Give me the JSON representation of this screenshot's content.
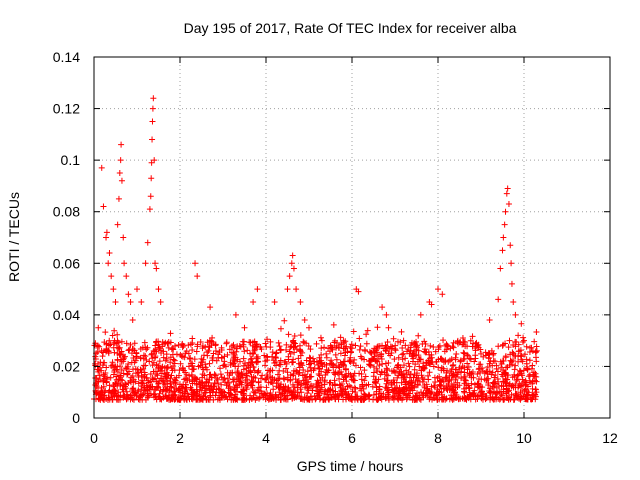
{
  "chart_data": {
    "type": "scatter",
    "title": "Day 195 of 2017, Rate Of TEC Index for receiver alba",
    "xlabel": "GPS time / hours",
    "ylabel": "ROTI / TECUs",
    "xlim": [
      0,
      12
    ],
    "ylim": [
      0,
      0.14
    ],
    "x_ticks": [
      "0",
      "2",
      "4",
      "6",
      "8",
      "10",
      "12"
    ],
    "y_ticks": [
      "0",
      "0.02",
      "0.04",
      "0.06",
      "0.08",
      "0.1",
      "0.12",
      "0.14"
    ],
    "grid": true,
    "marker": "plus",
    "marker_color": "#ff0000",
    "series": [
      {
        "x": [
          0.1,
          0.18,
          0.22,
          0.28,
          0.3,
          0.33,
          0.36,
          0.4,
          0.45,
          0.5,
          0.55,
          0.58,
          0.6,
          0.62,
          0.63,
          0.65,
          0.68,
          0.7,
          0.75,
          0.8,
          0.85,
          0.9,
          1.0,
          1.1,
          1.2,
          1.25,
          1.3,
          1.32,
          1.33,
          1.34,
          1.35,
          1.36,
          1.37,
          1.38,
          1.4,
          1.42,
          1.45,
          1.5,
          1.55,
          2.35,
          2.4,
          2.7,
          3.3,
          3.5,
          3.7,
          3.8,
          4.2,
          4.5,
          4.55,
          4.6,
          4.62,
          4.65,
          4.7,
          4.8,
          4.9,
          5.0,
          5.3,
          5.8,
          6.1,
          6.15,
          6.7,
          6.8,
          6.85,
          7.2,
          7.6,
          7.8,
          7.85,
          8.0,
          8.1,
          9.2,
          9.4,
          9.45,
          9.5,
          9.52,
          9.55,
          9.57,
          9.6,
          9.62,
          9.65,
          9.68,
          9.7,
          9.72,
          9.75,
          9.8,
          10.0
        ],
        "y": [
          0.035,
          0.097,
          0.082,
          0.07,
          0.072,
          0.06,
          0.064,
          0.055,
          0.05,
          0.045,
          0.075,
          0.085,
          0.095,
          0.1,
          0.106,
          0.092,
          0.07,
          0.06,
          0.055,
          0.048,
          0.045,
          0.038,
          0.05,
          0.045,
          0.06,
          0.068,
          0.081,
          0.086,
          0.093,
          0.099,
          0.108,
          0.115,
          0.12,
          0.124,
          0.1,
          0.06,
          0.058,
          0.05,
          0.045,
          0.06,
          0.055,
          0.043,
          0.04,
          0.035,
          0.045,
          0.05,
          0.045,
          0.05,
          0.055,
          0.06,
          0.063,
          0.058,
          0.05,
          0.045,
          0.038,
          0.035,
          0.03,
          0.03,
          0.05,
          0.049,
          0.043,
          0.04,
          0.035,
          0.03,
          0.04,
          0.045,
          0.044,
          0.05,
          0.048,
          0.038,
          0.046,
          0.058,
          0.065,
          0.07,
          0.075,
          0.08,
          0.087,
          0.089,
          0.083,
          0.067,
          0.06,
          0.052,
          0.045,
          0.04,
          0.03
        ]
      }
    ],
    "dense_band": {
      "description_x_range": [
        0,
        10.3
      ],
      "typical_range": [
        0.007,
        0.03
      ]
    }
  }
}
